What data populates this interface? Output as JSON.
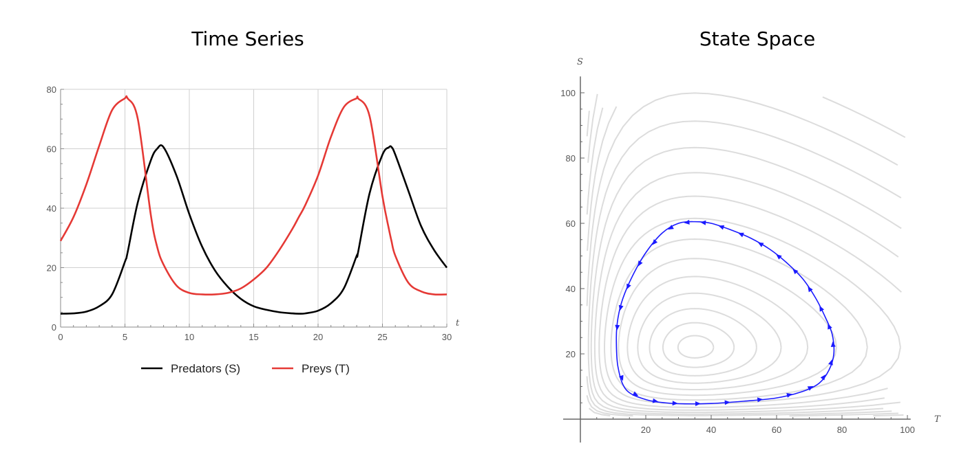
{
  "titles": {
    "left": "Time Series",
    "right": "State Space"
  },
  "chart_data": [
    {
      "type": "line",
      "title": "Time Series",
      "xlabel": "t",
      "ylabel": "",
      "xlim": [
        0,
        30
      ],
      "ylim": [
        0,
        80
      ],
      "xticks": [
        "0",
        "5",
        "10",
        "15",
        "20",
        "25",
        "30"
      ],
      "yticks": [
        "0",
        "20",
        "40",
        "60",
        "80"
      ],
      "grid": true,
      "legend": "bottom",
      "x": [
        0,
        1,
        2,
        3,
        4,
        5,
        5.2,
        6,
        7,
        7.5,
        8,
        9,
        10,
        11,
        12,
        13,
        14,
        15,
        16,
        17,
        18,
        18.5,
        19,
        20,
        21,
        22,
        23,
        23.1,
        24,
        25,
        25.5,
        25.7,
        26,
        27,
        28,
        29,
        30
      ],
      "series": [
        {
          "name": "Predators (S)",
          "color": "#000000",
          "values": [
            4.5,
            4.6,
            5.2,
            7,
            11,
            22,
            25,
            42,
            56,
            60,
            60.5,
            51,
            38,
            27,
            19,
            13.5,
            9.5,
            7,
            5.8,
            5,
            4.6,
            4.5,
            4.6,
            5.5,
            8,
            13,
            24,
            25,
            45,
            58,
            60.5,
            60.6,
            58,
            46,
            34,
            26,
            20
          ]
        },
        {
          "name": "Preys (T)",
          "color": "#e53935",
          "values": [
            29,
            37,
            48,
            61,
            73,
            77,
            77,
            70,
            38,
            27,
            21,
            14,
            11.5,
            11,
            11,
            11.5,
            13,
            16,
            20,
            26,
            33,
            37,
            41,
            51,
            64,
            74,
            77,
            77,
            71,
            44,
            33,
            29,
            24,
            15,
            12,
            11,
            11
          ]
        }
      ]
    },
    {
      "type": "line",
      "title": "State Space",
      "xlabel": "T",
      "ylabel": "S",
      "xlim": [
        0,
        100
      ],
      "ylim": [
        0,
        100
      ],
      "xticks": [
        "20",
        "40",
        "60",
        "80",
        "100"
      ],
      "yticks": [
        "20",
        "40",
        "60",
        "80",
        "100"
      ],
      "grid": false,
      "series": [
        {
          "name": "",
          "color": "#1a1aff",
          "x": [
            11,
            11.5,
            14,
            20,
            26,
            32,
            40,
            50,
            60,
            68,
            73,
            76,
            77.5,
            77,
            75,
            72,
            68,
            63,
            58,
            52,
            46,
            40,
            35,
            30,
            25,
            20,
            16,
            13,
            11.5,
            11
          ],
          "values": [
            25,
            16,
            9,
            6,
            5,
            4.7,
            4.8,
            5.5,
            6.5,
            8.5,
            11,
            15,
            20,
            26,
            31,
            37,
            43,
            48,
            52,
            55.5,
            58,
            60,
            60.5,
            60,
            57,
            51,
            44,
            37,
            31,
            25
          ]
        }
      ],
      "equilibrium": [
        35,
        22
      ]
    }
  ]
}
